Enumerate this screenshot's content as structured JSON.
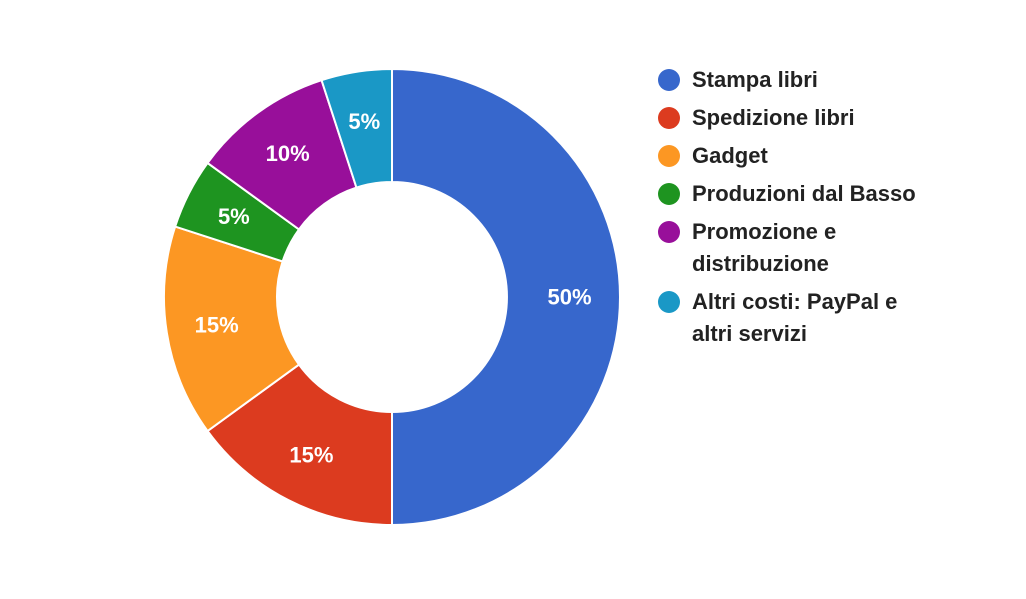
{
  "chart_data": {
    "type": "pie",
    "donut": true,
    "legend_position": "right",
    "slices": [
      {
        "label": "Stampa libri",
        "value": 50,
        "value_label": "50%",
        "color": "#3767cc"
      },
      {
        "label": "Spedizione libri",
        "value": 15,
        "value_label": "15%",
        "color": "#dc3b1f"
      },
      {
        "label": "Gadget",
        "value": 15,
        "value_label": "15%",
        "color": "#fc9723"
      },
      {
        "label": "Produzioni dal Basso",
        "value": 5,
        "value_label": "5%",
        "color": "#1e9420"
      },
      {
        "label": "Promozione e distribuzione",
        "value": 10,
        "value_label": "10%",
        "color": "#980f9a"
      },
      {
        "label": "Altri costi: PayPal e altri servizi",
        "value": 5,
        "value_label": "5%",
        "color": "#1a98c6"
      }
    ]
  }
}
